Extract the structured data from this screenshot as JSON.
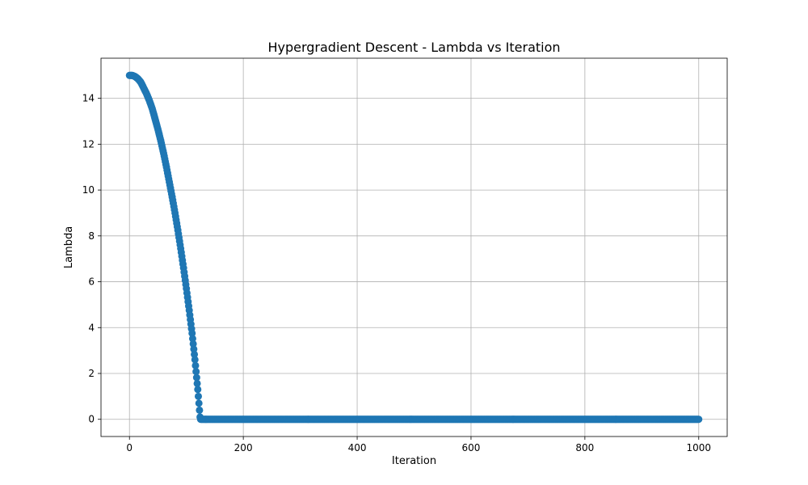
{
  "chart_data": {
    "type": "scatter",
    "title": "Hypergradient Descent - Lambda vs Iteration",
    "xlabel": "Iteration",
    "ylabel": "Lambda",
    "xlim": [
      -50,
      1050
    ],
    "ylim": [
      -0.75,
      15.75
    ],
    "xticks": [
      0,
      200,
      400,
      600,
      800,
      1000
    ],
    "yticks": [
      0,
      2,
      4,
      6,
      8,
      10,
      12,
      14
    ],
    "grid": true,
    "series": [
      {
        "color": "#1f77b4",
        "marker": "circle",
        "curve": {
          "start_value": 15,
          "start_iteration": 0,
          "zero_reached_at": 125,
          "end_iteration": 1000,
          "sample_points": [
            [
              0,
              15.0
            ],
            [
              5,
              15.0
            ],
            [
              10,
              14.95
            ],
            [
              15,
              14.85
            ],
            [
              20,
              14.7
            ],
            [
              25,
              14.45
            ],
            [
              30,
              14.2
            ],
            [
              35,
              13.9
            ],
            [
              40,
              13.55
            ],
            [
              45,
              13.1
            ],
            [
              50,
              12.65
            ],
            [
              55,
              12.15
            ],
            [
              60,
              11.6
            ],
            [
              65,
              11.0
            ],
            [
              70,
              10.35
            ],
            [
              75,
              9.7
            ],
            [
              80,
              9.0
            ],
            [
              85,
              8.25
            ],
            [
              90,
              7.45
            ],
            [
              95,
              6.6
            ],
            [
              100,
              5.7
            ],
            [
              105,
              4.75
            ],
            [
              110,
              3.75
            ],
            [
              115,
              2.6
            ],
            [
              120,
              1.3
            ],
            [
              124,
              0.1
            ],
            [
              125,
              0.0
            ],
            [
              1000,
              0.0
            ]
          ]
        }
      }
    ]
  }
}
